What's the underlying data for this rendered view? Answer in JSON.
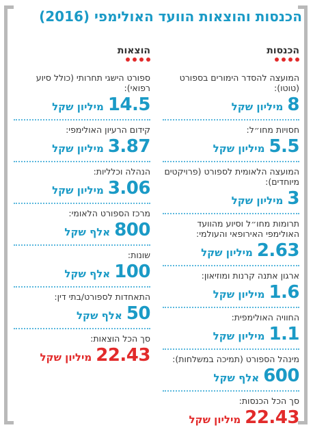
{
  "title": "הכנסות והוצאות הוועד האולימפי (2016)",
  "income": {
    "heading": "הכנסות",
    "items": [
      {
        "label": "המועצה להסדר הימורים בספורט (טוטו):",
        "num": "8",
        "unit": "מיליון שקל"
      },
      {
        "label": "חסויות מחו״ל:",
        "num": "5.5",
        "unit": "מיליון שקל"
      },
      {
        "label": "המועצה הלאומית לספורט (פרויקטים מיוחדים):",
        "num": "3",
        "unit": "מיליון שקל"
      },
      {
        "label": "תרומות מחו״ל וסיוע מהוועד האולימפי האירופאי והעולמי:",
        "num": "2.63",
        "unit": "מיליון שקל"
      },
      {
        "label": "ארגון אתנה קרנות ומוזיאון:",
        "num": "1.6",
        "unit": "מיליון שקל"
      },
      {
        "label": "החוויה האולימפית:",
        "num": "1.1",
        "unit": "מיליון שקל"
      },
      {
        "label": "מינהל הספורט (תמיכה במשלחות):",
        "num": "600",
        "unit": "אלף שקל"
      }
    ],
    "total": {
      "label": "סך הכל הכנסות:",
      "num": "22.43",
      "unit": "מיליון שקל"
    }
  },
  "expenses": {
    "heading": "הוצאות",
    "items": [
      {
        "label": "ספורט הישגי תחרותי (כולל סיוע רפואי):",
        "num": "14.5",
        "unit": "מיליון שקל"
      },
      {
        "label": "קידום הרעיון האולימפי:",
        "num": "3.87",
        "unit": "מיליון שקל"
      },
      {
        "label": "הנהלה וכלליות:",
        "num": "3.06",
        "unit": "מיליון שקל"
      },
      {
        "label": "מרכז הספורט הלאומי:",
        "num": "800",
        "unit": "אלף שקל"
      },
      {
        "label": "שונות:",
        "num": "100",
        "unit": "אלף שקל"
      },
      {
        "label": "התאחדות לספורט/בתי דין:",
        "num": "50",
        "unit": "אלף שקל"
      }
    ],
    "total": {
      "label": "סך הכל הוצאות:",
      "num": "22.43",
      "unit": "מיליון שקל"
    }
  },
  "colors": {
    "accent": "#1a9ac6",
    "total": "#e22a2a",
    "frame": "#b9b9b9"
  }
}
